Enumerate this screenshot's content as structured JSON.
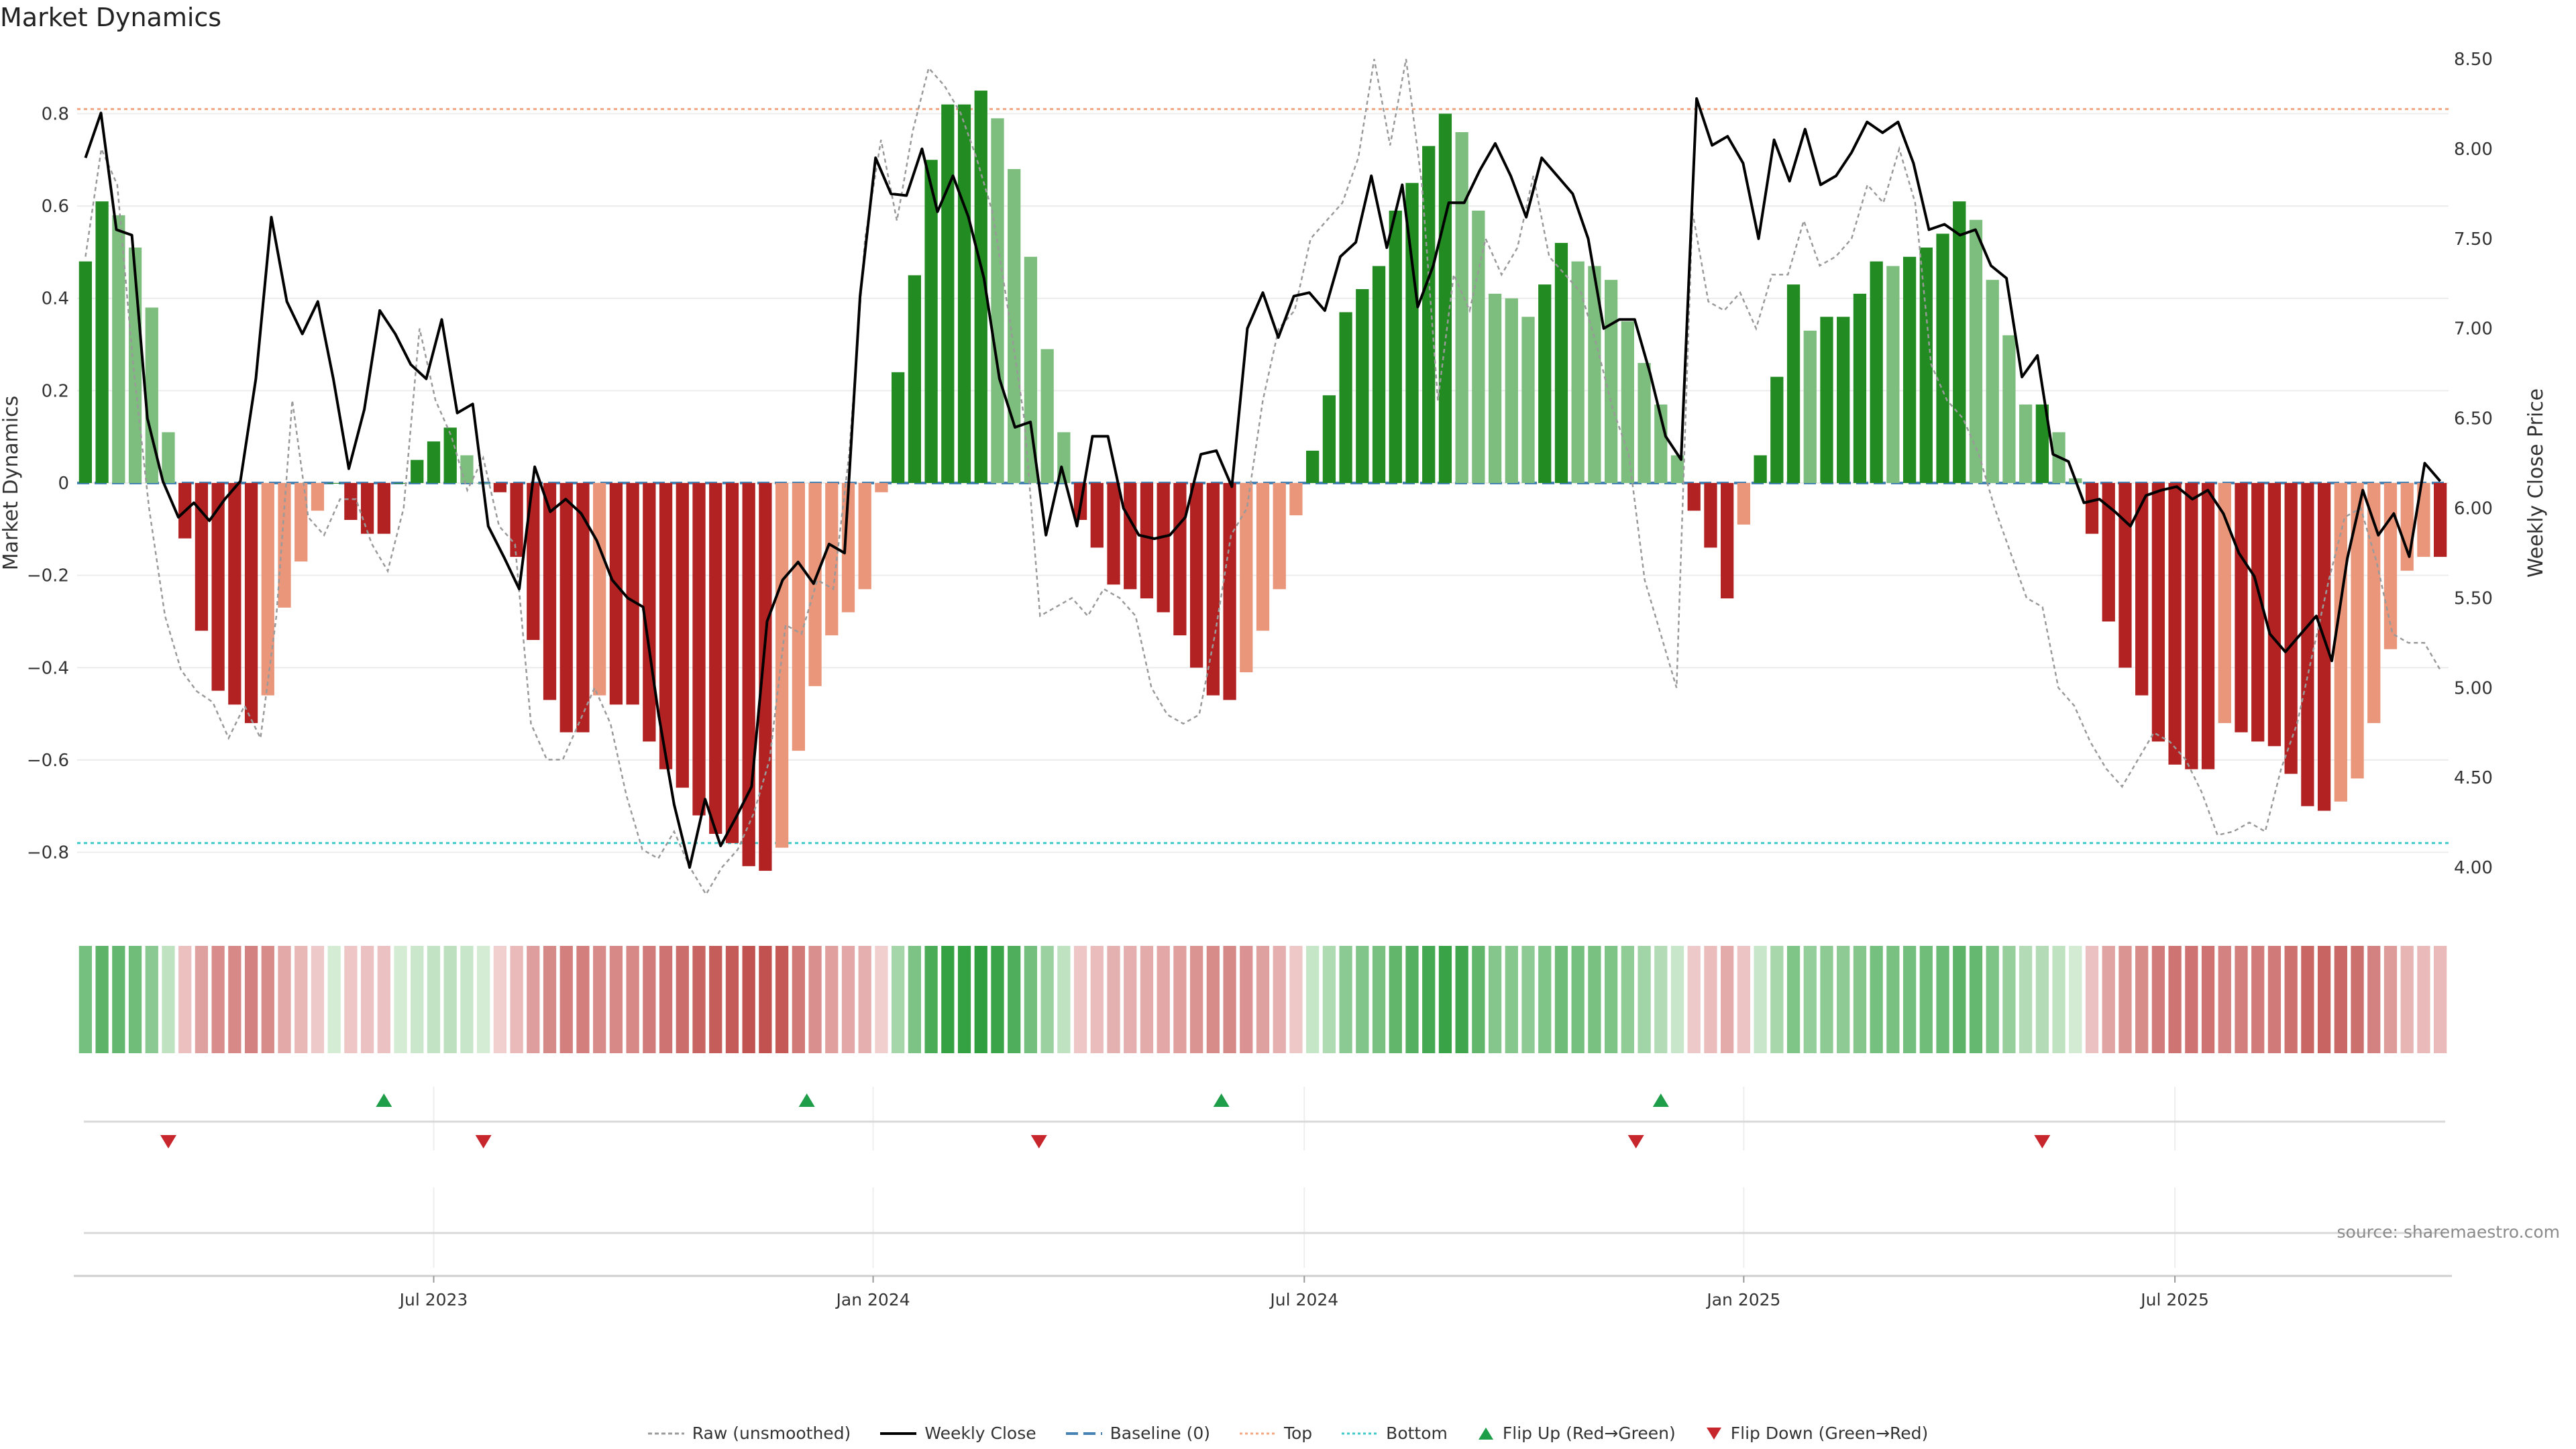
{
  "chart_data": {
    "type": "bar",
    "title": "Market Dynamics",
    "ylabel": "Market Dynamics",
    "y2label": "Weekly Close Price",
    "ylim": [
      -0.93,
      0.93
    ],
    "y2lim": [
      3.75,
      8.53
    ],
    "y_ticks": [
      0.8,
      0.6,
      0.4,
      0.2,
      0,
      -0.2,
      -0.4,
      -0.6,
      -0.8
    ],
    "y_tick_labels": [
      "0.8",
      "0.6",
      "0.4",
      "0.2",
      "0",
      "−0.2",
      "−0.4",
      "−0.6",
      "−0.8"
    ],
    "y2_ticks": [
      8.5,
      8.0,
      7.5,
      7.0,
      6.5,
      6.0,
      5.5,
      5.0,
      4.5,
      4.0
    ],
    "y2_tick_labels": [
      "8.50",
      "8.00",
      "7.50",
      "7.00",
      "6.50",
      "6.00",
      "5.50",
      "5.00",
      "4.50",
      "4.00"
    ],
    "x_ticks": [
      {
        "week": 21.5,
        "label": "Jul 2023"
      },
      {
        "week": 48.0,
        "label": "Jan 2024"
      },
      {
        "week": 74.0,
        "label": "Jul 2024"
      },
      {
        "week": 100.5,
        "label": "Jan 2025"
      },
      {
        "week": 126.5,
        "label": "Jul 2025"
      }
    ],
    "top_level": 0.81,
    "bottom_level": -0.78,
    "dynamics": [
      0.48,
      0.61,
      0.58,
      0.51,
      0.38,
      0.11,
      -0.12,
      -0.32,
      -0.45,
      -0.48,
      -0.52,
      -0.46,
      -0.27,
      -0.17,
      -0.06,
      0,
      -0.08,
      -0.11,
      -0.11,
      0,
      0.05,
      0.09,
      0.12,
      0.06,
      0,
      -0.02,
      -0.16,
      -0.34,
      -0.47,
      -0.54,
      -0.54,
      -0.46,
      -0.48,
      -0.48,
      -0.56,
      -0.62,
      -0.66,
      -0.72,
      -0.76,
      -0.78,
      -0.83,
      -0.84,
      -0.79,
      -0.58,
      -0.44,
      -0.33,
      -0.28,
      -0.23,
      -0.02,
      0.24,
      0.45,
      0.7,
      0.82,
      0.82,
      0.85,
      0.79,
      0.68,
      0.49,
      0.29,
      0.11,
      -0.08,
      -0.14,
      -0.22,
      -0.23,
      -0.25,
      -0.28,
      -0.33,
      -0.4,
      -0.46,
      -0.47,
      -0.41,
      -0.32,
      -0.23,
      -0.07,
      0.07,
      0.19,
      0.37,
      0.42,
      0.47,
      0.59,
      0.65,
      0.73,
      0.8,
      0.76,
      0.59,
      0.41,
      0.4,
      0.36,
      0.43,
      0.52,
      0.48,
      0.47,
      0.44,
      0.35,
      0.26,
      0.17,
      0.06,
      -0.06,
      -0.14,
      -0.25,
      -0.09,
      0.06,
      0.23,
      0.43,
      0.33,
      0.36,
      0.36,
      0.41,
      0.48,
      0.47,
      0.49,
      0.51,
      0.54,
      0.61,
      0.57,
      0.44,
      0.32,
      0.17,
      0.17,
      0.11,
      0.01,
      -0.11,
      -0.3,
      -0.4,
      -0.46,
      -0.56,
      -0.61,
      -0.62,
      -0.62,
      -0.52,
      -0.54,
      -0.56,
      -0.57,
      -0.63,
      -0.7,
      -0.71,
      -0.69,
      -0.64,
      -0.52,
      -0.36,
      -0.19,
      -0.16,
      -0.16
    ],
    "weekly_close": [
      7.95,
      8.2,
      7.55,
      7.52,
      6.5,
      6.15,
      5.95,
      6.03,
      5.93,
      6.05,
      6.15,
      6.72,
      7.62,
      7.15,
      6.97,
      7.15,
      6.72,
      6.22,
      6.55,
      7.1,
      6.97,
      6.8,
      6.72,
      7.05,
      6.53,
      6.58,
      5.9,
      5.73,
      5.55,
      6.23,
      5.98,
      6.05,
      5.97,
      5.82,
      5.6,
      5.5,
      5.45,
      4.85,
      4.35,
      4.0,
      4.38,
      4.12,
      4.28,
      4.45,
      5.37,
      5.6,
      5.7,
      5.58,
      5.8,
      5.75,
      7.18,
      7.95,
      7.75,
      7.74,
      8.0,
      7.65,
      7.85,
      7.62,
      7.28,
      6.72,
      6.45,
      6.48,
      5.85,
      6.23,
      5.9,
      6.4,
      6.4,
      6.0,
      5.85,
      5.83,
      5.85,
      5.95,
      6.3,
      6.32,
      6.12,
      7.0,
      7.2,
      6.95,
      7.18,
      7.2,
      7.1,
      7.4,
      7.48,
      7.85,
      7.45,
      7.8,
      7.12,
      7.35,
      7.7,
      7.7,
      7.88,
      8.03,
      7.85,
      7.62,
      7.95,
      7.85,
      7.75,
      7.5,
      7.0,
      7.05,
      7.05,
      6.75,
      6.4,
      6.27,
      8.28,
      8.02,
      8.07,
      7.92,
      7.5,
      8.05,
      7.82,
      8.11,
      7.8,
      7.85,
      7.98,
      8.15,
      8.09,
      8.15,
      7.92,
      7.55,
      7.58,
      7.52,
      7.55,
      7.35,
      7.28,
      6.73,
      6.85,
      6.3,
      6.26,
      6.03,
      6.05,
      5.98,
      5.9,
      6.07,
      6.1,
      6.12,
      6.05,
      6.1,
      5.97,
      5.75,
      5.62,
      5.3,
      5.2,
      5.3,
      5.4,
      5.15,
      5.72,
      6.1,
      5.85,
      5.97,
      5.73,
      6.25,
      6.15
    ],
    "raw": [
      7.4,
      8.0,
      7.8,
      6.8,
      6.0,
      5.4,
      5.1,
      4.98,
      4.92,
      4.72,
      4.9,
      4.72,
      5.4,
      6.6,
      5.95,
      5.85,
      6.05,
      6.05,
      5.8,
      5.65,
      6.0,
      7.0,
      6.6,
      6.4,
      6.1,
      6.28,
      5.9,
      5.8,
      4.8,
      4.6,
      4.6,
      4.8,
      5.0,
      4.8,
      4.4,
      4.1,
      4.05,
      4.2,
      4.0,
      3.85,
      4.0,
      4.1,
      4.3,
      4.6,
      5.35,
      5.3,
      5.6,
      5.55,
      6.3,
      7.5,
      8.05,
      7.6,
      8.1,
      8.45,
      8.35,
      8.2,
      7.95,
      7.65,
      7.1,
      6.5,
      5.4,
      5.45,
      5.5,
      5.4,
      5.55,
      5.5,
      5.4,
      5.0,
      4.85,
      4.8,
      4.85,
      5.3,
      5.85,
      6.0,
      6.6,
      7.0,
      7.1,
      7.5,
      7.6,
      7.7,
      7.95,
      8.5,
      8.02,
      8.5,
      7.8,
      6.6,
      7.3,
      7.1,
      7.5,
      7.3,
      7.45,
      7.85,
      7.4,
      7.3,
      7.2,
      6.9,
      6.55,
      6.3,
      5.6,
      5.3,
      5.0,
      7.65,
      7.15,
      7.1,
      7.2,
      7.0,
      7.3,
      7.3,
      7.6,
      7.35,
      7.4,
      7.5,
      7.8,
      7.7,
      8.0,
      7.7,
      6.8,
      6.6,
      6.5,
      6.3,
      6.0,
      5.75,
      5.5,
      5.45,
      5.0,
      4.9,
      4.7,
      4.55,
      4.45,
      4.6,
      4.75,
      4.7,
      4.6,
      4.42,
      4.18,
      4.2,
      4.25,
      4.2,
      4.55,
      4.8,
      5.2,
      5.6,
      5.95,
      6.0,
      5.7,
      5.3,
      5.25,
      5.25,
      5.1
    ],
    "flip_up_weeks": [
      18.5,
      44.0,
      69.0,
      95.5
    ],
    "flip_down_weeks": [
      5.5,
      24.5,
      58.0,
      94.0,
      118.5
    ],
    "legend": [
      {
        "key": "raw",
        "label": "Raw (unsmoothed)"
      },
      {
        "key": "weekly_close",
        "label": "Weekly Close"
      },
      {
        "key": "baseline",
        "label": "Baseline (0)"
      },
      {
        "key": "top",
        "label": "Top"
      },
      {
        "key": "bottom",
        "label": "Bottom"
      },
      {
        "key": "flip_up",
        "label": "Flip Up (Red→Green)"
      },
      {
        "key": "flip_down",
        "label": "Flip Down (Green→Red)"
      }
    ],
    "source": "source: sharemaestro.com"
  },
  "colors": {
    "green_strong": "#228b22",
    "green_light": "#7dbd7d",
    "red_strong": "#b22222",
    "red_light": "#e9967a",
    "price_line": "#000000",
    "raw_line": "#9a9a9a",
    "baseline": "#4682b4",
    "top": "#f4a582",
    "bottom": "#3fc9c9",
    "flip_up": "#1e9e49",
    "flip_down": "#c7262d"
  }
}
